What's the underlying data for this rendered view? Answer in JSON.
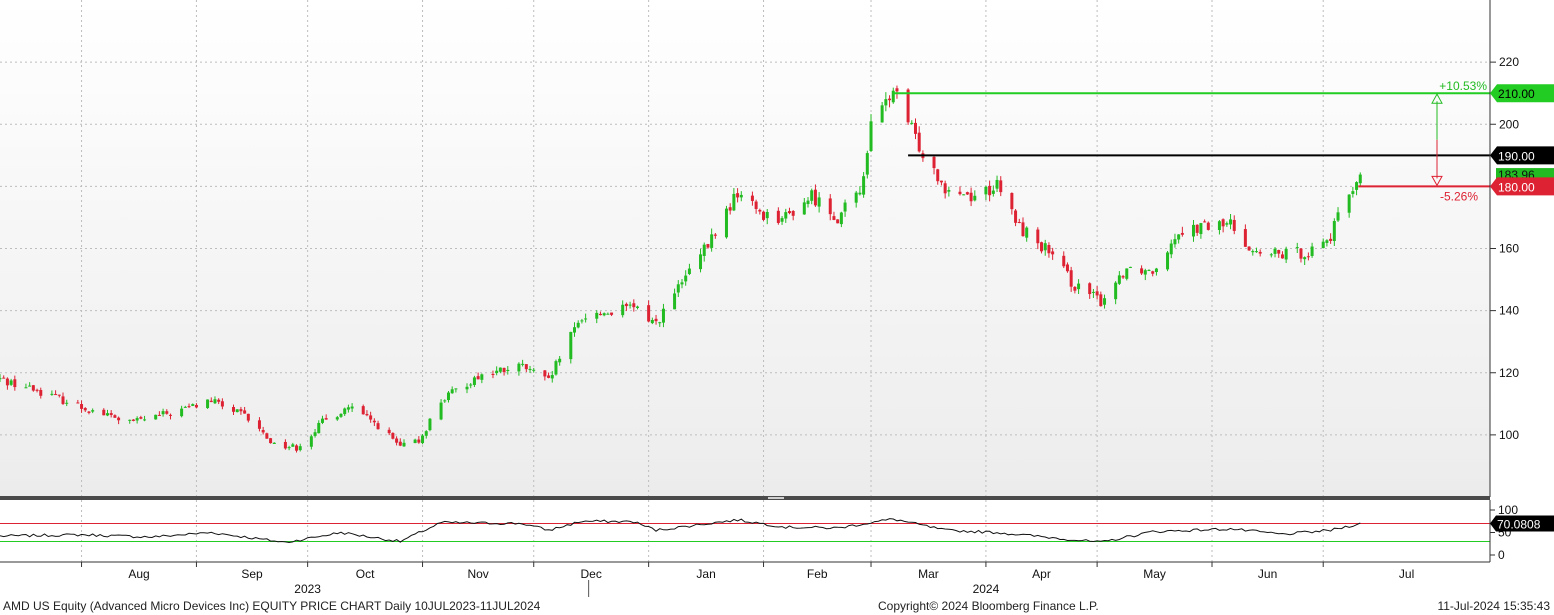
{
  "chart_data": {
    "type": "candlestick",
    "title": "",
    "xlabel": "",
    "ylabel": "",
    "ylim": [
      80,
      240
    ],
    "price_ticks": [
      100,
      120,
      140,
      160,
      180,
      200,
      220
    ],
    "grid": true,
    "x_months": [
      {
        "label": "Aug",
        "date": "2023-08-01"
      },
      {
        "label": "Sep",
        "date": "2023-09-01"
      },
      {
        "label": "Oct",
        "date": "2023-10-01"
      },
      {
        "label": "Nov",
        "date": "2023-11-01"
      },
      {
        "label": "Dec",
        "date": "2023-12-01"
      },
      {
        "label": "Jan",
        "date": "2024-01-01"
      },
      {
        "label": "Feb",
        "date": "2024-02-01"
      },
      {
        "label": "Mar",
        "date": "2024-03-01"
      },
      {
        "label": "Apr",
        "date": "2024-04-01"
      },
      {
        "label": "May",
        "date": "2024-05-01"
      },
      {
        "label": "Jun",
        "date": "2024-06-01"
      },
      {
        "label": "Jul",
        "date": "2024-07-01"
      }
    ],
    "year_labels": [
      {
        "label": "2023",
        "date": "2023-10-01"
      },
      {
        "label": "2024",
        "date": "2024-04-01"
      }
    ],
    "x_range": [
      "2023-07-10",
      "2024-08-15"
    ],
    "price_path": [
      [
        "2023-07-10",
        118
      ],
      [
        "2023-07-21",
        114
      ],
      [
        "2023-08-01",
        109
      ],
      [
        "2023-08-14",
        104
      ],
      [
        "2023-08-25",
        107
      ],
      [
        "2023-09-05",
        111
      ],
      [
        "2023-09-14",
        106
      ],
      [
        "2023-09-22",
        97
      ],
      [
        "2023-09-28",
        96
      ],
      [
        "2023-10-05",
        104
      ],
      [
        "2023-10-12",
        109
      ],
      [
        "2023-10-20",
        103
      ],
      [
        "2023-10-26",
        96
      ],
      [
        "2023-10-31",
        98
      ],
      [
        "2023-11-06",
        111
      ],
      [
        "2023-11-16",
        119
      ],
      [
        "2023-11-28",
        122
      ],
      [
        "2023-12-05",
        117
      ],
      [
        "2023-12-08",
        125
      ],
      [
        "2023-12-14",
        138
      ],
      [
        "2023-12-28",
        141
      ],
      [
        "2024-01-03",
        136
      ],
      [
        "2024-01-10",
        149
      ],
      [
        "2024-01-17",
        161
      ],
      [
        "2024-01-25",
        178
      ],
      [
        "2024-02-01",
        171
      ],
      [
        "2024-02-07",
        170
      ],
      [
        "2024-02-14",
        177
      ],
      [
        "2024-02-21",
        170
      ],
      [
        "2024-02-27",
        178
      ],
      [
        "2024-03-01",
        199
      ],
      [
        "2024-03-07",
        211
      ],
      [
        "2024-03-14",
        193
      ],
      [
        "2024-03-21",
        180
      ],
      [
        "2024-03-28",
        177
      ],
      [
        "2024-04-04",
        180
      ],
      [
        "2024-04-10",
        167
      ],
      [
        "2024-04-17",
        160
      ],
      [
        "2024-04-25",
        148
      ],
      [
        "2024-05-02",
        143
      ],
      [
        "2024-05-09",
        154
      ],
      [
        "2024-05-16",
        153
      ],
      [
        "2024-05-23",
        166
      ],
      [
        "2024-05-30",
        167
      ],
      [
        "2024-06-06",
        168
      ],
      [
        "2024-06-13",
        158
      ],
      [
        "2024-06-20",
        158
      ],
      [
        "2024-06-27",
        159
      ],
      [
        "2024-07-03",
        164
      ],
      [
        "2024-07-08",
        178
      ],
      [
        "2024-07-11",
        184
      ]
    ],
    "price_markers": [
      {
        "label": "210.00",
        "value": 210,
        "color": "#22cc22",
        "start": "2024-03-07",
        "text_color": "#000000"
      },
      {
        "label": "190.00",
        "value": 190,
        "color": "#000000",
        "start": "2024-03-11",
        "text_color": "#ffffff"
      },
      {
        "label": "180.00",
        "value": 180,
        "color": "#dd2233",
        "start": "2024-07-11",
        "text_color": "#ffffff"
      }
    ],
    "last_price": {
      "label": "183.96",
      "value": 183.96
    },
    "change_labels": {
      "up": "+10.53%",
      "down": "-5.26%"
    },
    "rsi": {
      "ylim": [
        0,
        100
      ],
      "ticks": [
        0,
        50,
        100
      ],
      "upper": 70,
      "lower": 30,
      "last_label": "70.0808",
      "path": [
        [
          "2023-07-10",
          42
        ],
        [
          "2023-08-01",
          45
        ],
        [
          "2023-08-20",
          40
        ],
        [
          "2023-09-05",
          50
        ],
        [
          "2023-09-25",
          28
        ],
        [
          "2023-10-10",
          50
        ],
        [
          "2023-10-26",
          30
        ],
        [
          "2023-11-06",
          72
        ],
        [
          "2023-11-28",
          70
        ],
        [
          "2023-12-05",
          55
        ],
        [
          "2023-12-14",
          75
        ],
        [
          "2023-12-28",
          74
        ],
        [
          "2024-01-03",
          55
        ],
        [
          "2024-01-17",
          70
        ],
        [
          "2024-01-25",
          78
        ],
        [
          "2024-02-07",
          62
        ],
        [
          "2024-02-21",
          60
        ],
        [
          "2024-03-07",
          80
        ],
        [
          "2024-03-21",
          55
        ],
        [
          "2024-04-04",
          50
        ],
        [
          "2024-04-17",
          40
        ],
        [
          "2024-05-02",
          28
        ],
        [
          "2024-05-16",
          52
        ],
        [
          "2024-06-06",
          58
        ],
        [
          "2024-06-20",
          46
        ],
        [
          "2024-07-03",
          55
        ],
        [
          "2024-07-11",
          70
        ]
      ]
    },
    "colors": {
      "up": "#22bb22",
      "down": "#dd2233",
      "grid": "#bdbdbd",
      "rsi_line": "#111111",
      "rsi_upper": "#dd2233",
      "rsi_lower": "#22cc22"
    }
  },
  "footer": {
    "left": "AMD US Equity (Advanced Micro Devices Inc) EQUITY PRICE CHART  Daily 10JUL2023-11JUL2024",
    "center": "Copyright© 2024 Bloomberg Finance L.P.",
    "right": "11-Jul-2024 15:35:43"
  }
}
